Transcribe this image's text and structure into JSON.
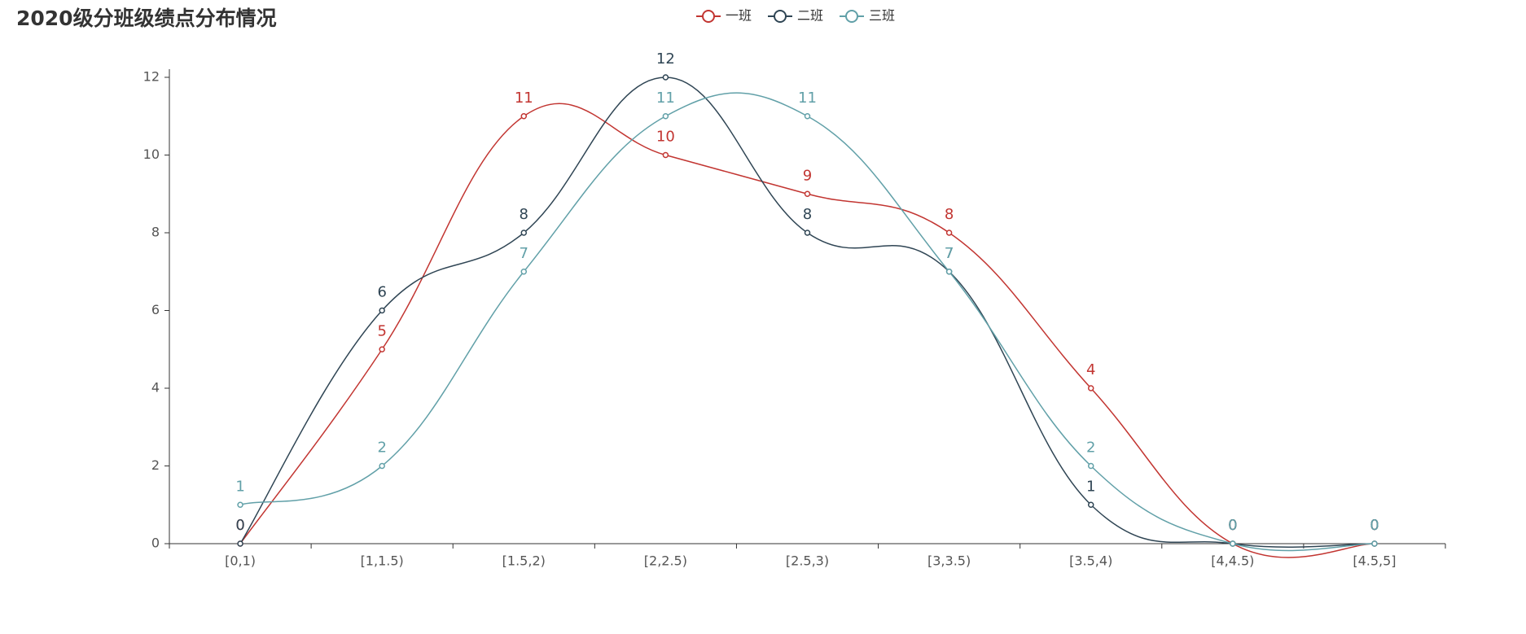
{
  "chart_data": {
    "type": "line",
    "title": "2020级分班级绩点分布情况",
    "categories": [
      "[0,1)",
      "[1,1.5)",
      "[1.5,2)",
      "[2,2.5)",
      "[2.5,3)",
      "[3,3.5)",
      "[3.5,4)",
      "[4,4.5)",
      "[4.5,5]"
    ],
    "series": [
      {
        "name": "一班",
        "color": "#c23531",
        "values": [
          0,
          5,
          11,
          10,
          9,
          8,
          4,
          0,
          0
        ]
      },
      {
        "name": "二班",
        "color": "#2f4554",
        "values": [
          0,
          6,
          8,
          12,
          8,
          7,
          1,
          0,
          0
        ]
      },
      {
        "name": "三班",
        "color": "#61a0a8",
        "values": [
          1,
          2,
          7,
          11,
          11,
          7,
          2,
          0,
          0
        ]
      }
    ],
    "ylim": [
      0,
      12
    ],
    "yticks": [
      0,
      2,
      4,
      6,
      8,
      10,
      12
    ],
    "smooth": true,
    "grid": false,
    "legend": "top"
  }
}
